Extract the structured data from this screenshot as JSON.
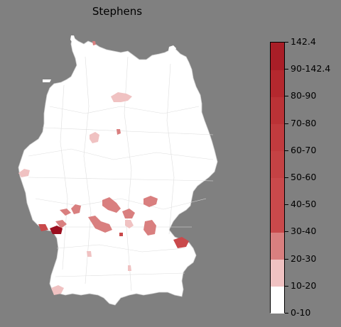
{
  "title": "Stephens",
  "legend": {
    "labels": [
      "0-10",
      "10-20",
      "20-30",
      "30-40",
      "40-50",
      "50-60",
      "60-70",
      "70-80",
      "80-90",
      "90-142.4",
      "142.4"
    ],
    "colors": [
      "#ffffff",
      "#f0c2c2",
      "#d97f7f",
      "#c9494b",
      "#c9494b",
      "#c44244",
      "#c13b3e",
      "#bb3236",
      "#b4282e",
      "#a91e27",
      "#9b0e1f"
    ]
  },
  "map": {
    "land_color": "#ffffff",
    "border_color": "#c8c8c8",
    "highlight_regions": [
      {
        "name": "region-north-center",
        "color": "#f0c2c2"
      },
      {
        "name": "region-north-small",
        "color": "#d97f7f"
      },
      {
        "name": "region-west-central",
        "color": "#f0c2c2"
      },
      {
        "name": "region-west-edge",
        "color": "#f0c2c2"
      },
      {
        "name": "region-east-saxony",
        "color": "#d97f7f"
      },
      {
        "name": "region-hesse-1",
        "color": "#d97f7f"
      },
      {
        "name": "region-hesse-2",
        "color": "#d97f7f"
      },
      {
        "name": "region-franconia",
        "color": "#d97f7f"
      },
      {
        "name": "region-bavaria-east",
        "color": "#c9494b"
      },
      {
        "name": "region-bavaria-upper",
        "color": "#d97f7f"
      },
      {
        "name": "region-palatinate-1",
        "color": "#c9494b"
      },
      {
        "name": "region-palatinate-2",
        "color": "#9b0e1f"
      },
      {
        "name": "region-baden",
        "color": "#f0c2c2"
      },
      {
        "name": "region-south-west",
        "color": "#f0c2c2"
      }
    ]
  }
}
